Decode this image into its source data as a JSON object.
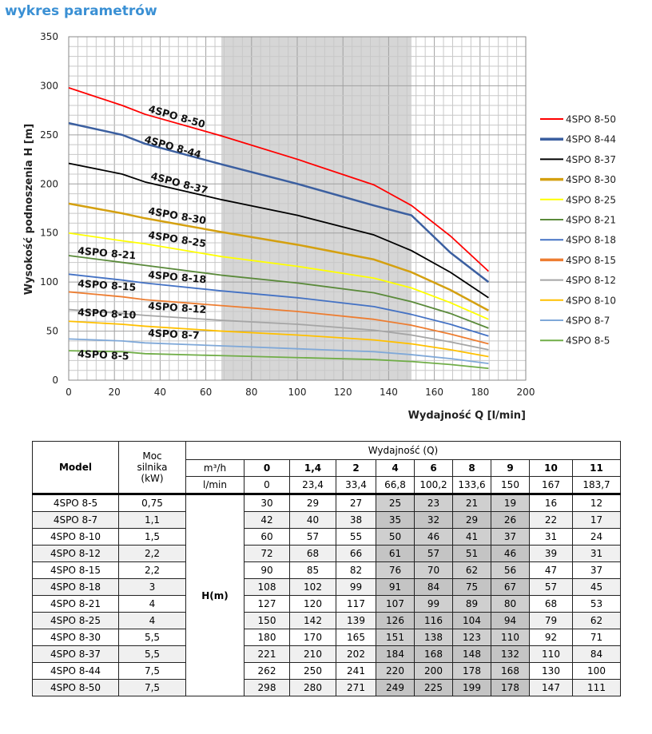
{
  "title": "wykres parametrów",
  "chart_data": {
    "type": "line",
    "xlabel": "Wydajność Q [l/min]",
    "ylabel": "Wysokość podnoszenia H [m]",
    "xlim": [
      0,
      200
    ],
    "ylim": [
      0,
      350
    ],
    "xticks": [
      0,
      20,
      40,
      60,
      80,
      100,
      120,
      140,
      160,
      180,
      200
    ],
    "yticks": [
      0,
      50,
      100,
      150,
      200,
      250,
      300,
      350
    ],
    "grid": true,
    "legend": "right",
    "shaded_range": [
      66.8,
      150
    ],
    "x": [
      0,
      23.4,
      33.4,
      66.8,
      100.2,
      133.6,
      150,
      167,
      183.7
    ],
    "series": [
      {
        "name": "4SPO 8-50",
        "color": "#ff0000",
        "values": [
          298,
          280,
          271,
          249,
          225,
          199,
          178,
          147,
          111
        ]
      },
      {
        "name": "4SPO 8-44",
        "color": "#3b5fa0",
        "values": [
          262,
          250,
          241,
          220,
          200,
          178,
          168,
          130,
          100
        ]
      },
      {
        "name": "4SPO 8-37",
        "color": "#000000",
        "values": [
          221,
          210,
          202,
          184,
          168,
          148,
          132,
          110,
          84
        ]
      },
      {
        "name": "4SPO 8-30",
        "color": "#d4a010",
        "values": [
          180,
          170,
          165,
          151,
          138,
          123,
          110,
          92,
          71
        ]
      },
      {
        "name": "4SPO 8-25",
        "color": "#ffff00",
        "values": [
          150,
          142,
          139,
          126,
          116,
          104,
          94,
          79,
          62
        ]
      },
      {
        "name": "4SPO 8-21",
        "color": "#5a8a3a",
        "values": [
          127,
          120,
          117,
          107,
          99,
          89,
          80,
          68,
          53
        ]
      },
      {
        "name": "4SPO 8-18",
        "color": "#4472c4",
        "values": [
          108,
          102,
          99,
          91,
          84,
          75,
          67,
          57,
          45
        ]
      },
      {
        "name": "4SPO 8-15",
        "color": "#ed7d31",
        "values": [
          90,
          85,
          82,
          76,
          70,
          62,
          56,
          47,
          37
        ]
      },
      {
        "name": "4SPO 8-12",
        "color": "#a5a5a5",
        "values": [
          72,
          68,
          66,
          61,
          57,
          51,
          46,
          39,
          31
        ]
      },
      {
        "name": "4SPO 8-10",
        "color": "#ffc000",
        "values": [
          60,
          57,
          55,
          50,
          46,
          41,
          37,
          31,
          24
        ]
      },
      {
        "name": "4SPO 8-7",
        "color": "#7fa8d8",
        "values": [
          42,
          40,
          38,
          35,
          32,
          29,
          26,
          22,
          17
        ]
      },
      {
        "name": "4SPO 8-5",
        "color": "#70ad47",
        "values": [
          30,
          29,
          27,
          25,
          23,
          21,
          19,
          16,
          12
        ]
      }
    ]
  },
  "table": {
    "h_model": "Model",
    "h_power": "Moc silnika (kW)",
    "h_flow": "Wydajność (Q)",
    "unit_m3h": "m³/h",
    "unit_lmin": "l/min",
    "h_label": "H(m)",
    "m3h": [
      "0",
      "1,4",
      "2",
      "4",
      "6",
      "8",
      "9",
      "10",
      "11"
    ],
    "lmin": [
      "0",
      "23,4",
      "33,4",
      "66,8",
      "100,2",
      "133,6",
      "150",
      "167",
      "183,7"
    ],
    "rows": [
      {
        "model": "4SPO 8-5",
        "power": "0,75",
        "h": [
          "30",
          "29",
          "27",
          "25",
          "23",
          "21",
          "19",
          "16",
          "12"
        ]
      },
      {
        "model": "4SPO 8-7",
        "power": "1,1",
        "h": [
          "42",
          "40",
          "38",
          "35",
          "32",
          "29",
          "26",
          "22",
          "17"
        ]
      },
      {
        "model": "4SPO 8-10",
        "power": "1,5",
        "h": [
          "60",
          "57",
          "55",
          "50",
          "46",
          "41",
          "37",
          "31",
          "24"
        ]
      },
      {
        "model": "4SPO 8-12",
        "power": "2,2",
        "h": [
          "72",
          "68",
          "66",
          "61",
          "57",
          "51",
          "46",
          "39",
          "31"
        ]
      },
      {
        "model": "4SPO 8-15",
        "power": "2,2",
        "h": [
          "90",
          "85",
          "82",
          "76",
          "70",
          "62",
          "56",
          "47",
          "37"
        ]
      },
      {
        "model": "4SPO 8-18",
        "power": "3",
        "h": [
          "108",
          "102",
          "99",
          "91",
          "84",
          "75",
          "67",
          "57",
          "45"
        ]
      },
      {
        "model": "4SPO 8-21",
        "power": "4",
        "h": [
          "127",
          "120",
          "117",
          "107",
          "99",
          "89",
          "80",
          "68",
          "53"
        ]
      },
      {
        "model": "4SPO 8-25",
        "power": "4",
        "h": [
          "150",
          "142",
          "139",
          "126",
          "116",
          "104",
          "94",
          "79",
          "62"
        ]
      },
      {
        "model": "4SPO 8-30",
        "power": "5,5",
        "h": [
          "180",
          "170",
          "165",
          "151",
          "138",
          "123",
          "110",
          "92",
          "71"
        ]
      },
      {
        "model": "4SPO 8-37",
        "power": "5,5",
        "h": [
          "221",
          "210",
          "202",
          "184",
          "168",
          "148",
          "132",
          "110",
          "84"
        ]
      },
      {
        "model": "4SPO 8-44",
        "power": "7,5",
        "h": [
          "262",
          "250",
          "241",
          "220",
          "200",
          "178",
          "168",
          "130",
          "100"
        ]
      },
      {
        "model": "4SPO 8-50",
        "power": "7,5",
        "h": [
          "298",
          "280",
          "271",
          "249",
          "225",
          "199",
          "178",
          "147",
          "111"
        ]
      }
    ]
  }
}
